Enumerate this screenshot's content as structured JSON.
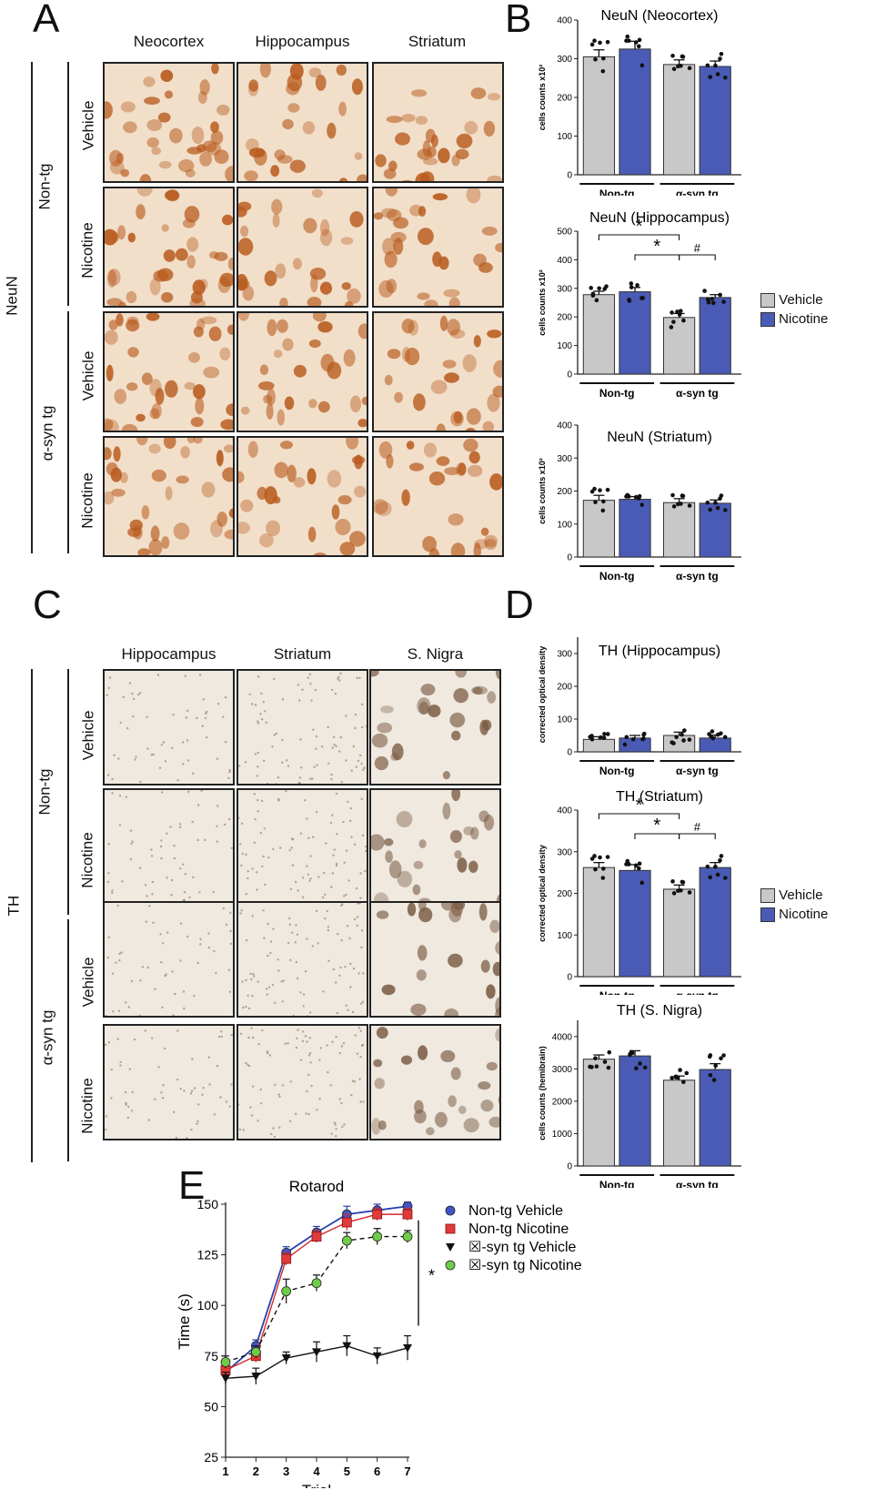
{
  "panels": {
    "A": {
      "letter": "A",
      "columns": [
        "Neocortex",
        "Hippocampus",
        "Striatum"
      ],
      "stain_label": "NeuN",
      "groups": [
        "Non-tg",
        "α-syn tg"
      ],
      "treatments": [
        "Vehicle",
        "Nicotine",
        "Vehicle",
        "Nicotine"
      ]
    },
    "B": {
      "letter": "B"
    },
    "C": {
      "letter": "C",
      "columns": [
        "Hippocampus",
        "Striatum",
        "S. Nigra"
      ],
      "stain_label": "TH",
      "groups": [
        "Non-tg",
        "α-syn tg"
      ],
      "treatments": [
        "Vehicle",
        "Nicotine",
        "Vehicle",
        "Nicotine"
      ]
    },
    "D": {
      "letter": "D"
    },
    "E": {
      "letter": "E"
    }
  },
  "colors": {
    "vehicle": "#c8c8c8",
    "nicotine": "#4a5bb5",
    "neun_stain": "#b85a1c",
    "th_stain": "#7a5a42"
  },
  "legend_bar": {
    "vehicle": "Vehicle",
    "nicotine": "Nicotine"
  },
  "chart_data": [
    {
      "id": "B1",
      "type": "bar",
      "title": "NeuN (Neocortex)",
      "ylabel": "cells counts x10²",
      "ylim": [
        0,
        400
      ],
      "yticks": [
        0,
        100,
        200,
        300,
        400
      ],
      "group_labels": [
        "Non-tg",
        "α-syn tg"
      ],
      "series": [
        {
          "name": "Vehicle",
          "values": [
            305,
            285
          ]
        },
        {
          "name": "Nicotine",
          "values": [
            325,
            280
          ]
        }
      ],
      "errors": [
        [
          18,
          12
        ],
        [
          20,
          14
        ]
      ],
      "annotations": []
    },
    {
      "id": "B2",
      "type": "bar",
      "title": "NeuN (Hippocampus)",
      "ylabel": "cells counts x10²",
      "ylim": [
        0,
        500
      ],
      "yticks": [
        0,
        100,
        200,
        300,
        400,
        500
      ],
      "group_labels": [
        "Non-tg",
        "α-syn tg"
      ],
      "series": [
        {
          "name": "Vehicle",
          "values": [
            278,
            198
          ]
        },
        {
          "name": "Nicotine",
          "values": [
            288,
            268
          ]
        }
      ],
      "errors": [
        [
          12,
          14
        ],
        [
          15,
          10
        ]
      ],
      "annotations": [
        "*",
        "*",
        "#"
      ]
    },
    {
      "id": "B3",
      "type": "bar",
      "title": "NeuN (Striatum)",
      "ylabel": "cells counts x10²",
      "ylim": [
        0,
        400
      ],
      "yticks": [
        0,
        100,
        200,
        300,
        400
      ],
      "group_labels": [
        "Non-tg",
        "α-syn tg"
      ],
      "series": [
        {
          "name": "Vehicle",
          "values": [
            172,
            165
          ]
        },
        {
          "name": "Nicotine",
          "values": [
            175,
            163
          ]
        }
      ],
      "errors": [
        [
          15,
          12
        ],
        [
          8,
          10
        ]
      ],
      "annotations": []
    },
    {
      "id": "D1",
      "type": "bar",
      "title": "TH (Hippocampus)",
      "ylabel": "corrected optical density",
      "ylim": [
        0,
        350
      ],
      "yticks": [
        0,
        100,
        200,
        300
      ],
      "group_labels": [
        "Non-tg",
        "α-syn tg"
      ],
      "series": [
        {
          "name": "Vehicle",
          "values": [
            38,
            50
          ]
        },
        {
          "name": "Nicotine",
          "values": [
            42,
            42
          ]
        }
      ],
      "errors": [
        [
          8,
          10
        ],
        [
          8,
          9
        ]
      ],
      "annotations": []
    },
    {
      "id": "D2",
      "type": "bar",
      "title": "TH (Striatum)",
      "ylabel": "corrected optical density",
      "ylim": [
        0,
        400
      ],
      "yticks": [
        0,
        100,
        200,
        300,
        400
      ],
      "group_labels": [
        "Non-tg",
        "α-syn tg"
      ],
      "series": [
        {
          "name": "Vehicle",
          "values": [
            262,
            210
          ]
        },
        {
          "name": "Nicotine",
          "values": [
            255,
            262
          ]
        }
      ],
      "errors": [
        [
          12,
          10
        ],
        [
          14,
          12
        ]
      ],
      "annotations": [
        "*",
        "*",
        "#"
      ]
    },
    {
      "id": "D3",
      "type": "bar",
      "title": "TH (S. Nigra)",
      "ylabel": "cells counts (hemibrain)",
      "ylim": [
        0,
        4500
      ],
      "yticks": [
        0,
        1000,
        2000,
        3000,
        4000
      ],
      "group_labels": [
        "Non-tg",
        "α-syn tg"
      ],
      "series": [
        {
          "name": "Vehicle",
          "values": [
            3300,
            2650
          ]
        },
        {
          "name": "Nicotine",
          "values": [
            3400,
            2980
          ]
        }
      ],
      "errors": [
        [
          130,
          130
        ],
        [
          160,
          180
        ]
      ],
      "annotations": []
    },
    {
      "id": "E",
      "type": "line",
      "title": "Rotarod",
      "xlabel": "Trial",
      "ylabel": "Time (s)",
      "x": [
        1,
        2,
        3,
        4,
        5,
        6,
        7
      ],
      "ylim": [
        25,
        150
      ],
      "yticks": [
        25,
        50,
        75,
        100,
        125,
        150
      ],
      "series": [
        {
          "name": "Non-tg Vehicle",
          "values": [
            67,
            80,
            126,
            136,
            145,
            147,
            149
          ],
          "err": [
            3,
            3,
            3,
            3,
            4,
            3,
            2
          ]
        },
        {
          "name": "Non-tg Nicotine",
          "values": [
            68,
            75,
            123,
            134,
            141,
            145,
            145
          ],
          "err": [
            3,
            3,
            3,
            3,
            4,
            3,
            3
          ]
        },
        {
          "name": "☒-syn tg Vehicle",
          "values": [
            64,
            65,
            74,
            77,
            80,
            75,
            79
          ],
          "err": [
            3,
            4,
            3,
            5,
            5,
            4,
            6
          ]
        },
        {
          "name": "☒-syn tg Nicotine",
          "values": [
            72,
            77,
            107,
            111,
            132,
            134,
            134
          ],
          "err": [
            3,
            3,
            6,
            4,
            4,
            4,
            3
          ]
        }
      ],
      "significance": "*"
    }
  ]
}
